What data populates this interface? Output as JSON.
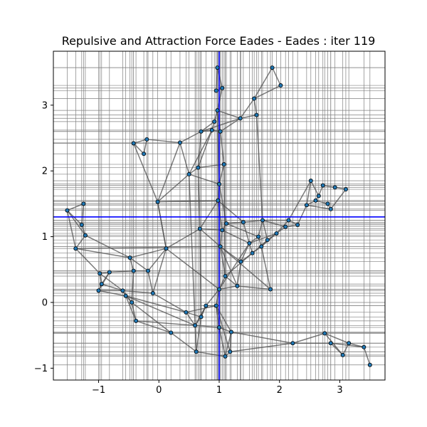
{
  "chart_data": {
    "type": "scatter",
    "title": "Repulsive and Attraction Force Eades - Eades : iter 119",
    "xlim": [
      -1.75,
      3.75
    ],
    "ylim": [
      -1.18,
      3.82
    ],
    "xticks": [
      -1,
      0,
      1,
      2,
      3
    ],
    "yticks": [
      -1,
      0,
      1,
      2,
      3
    ],
    "xtick_labels": [
      "−1",
      "0",
      "1",
      "2",
      "3"
    ],
    "ytick_labels": [
      "−1",
      "0",
      "1",
      "2",
      "3"
    ],
    "grid": "per-node lines",
    "colors": {
      "grid": "#808080",
      "edge": "#505050",
      "node": "#1f77b4",
      "node_edge": "#000000",
      "crosshair": "#0000ff"
    },
    "crosshair": {
      "x": 1.0,
      "y": 1.3
    },
    "nodes": [
      [
        -1.52,
        1.4
      ],
      [
        -1.25,
        1.5
      ],
      [
        -1.28,
        1.18
      ],
      [
        -1.22,
        1.02
      ],
      [
        -1.38,
        0.82
      ],
      [
        -0.98,
        0.44
      ],
      [
        -0.82,
        0.46
      ],
      [
        -0.95,
        0.28
      ],
      [
        -1.0,
        0.18
      ],
      [
        -0.6,
        0.18
      ],
      [
        -0.55,
        0.1
      ],
      [
        -0.48,
        0.68
      ],
      [
        -0.42,
        0.48
      ],
      [
        -0.18,
        0.48
      ],
      [
        -0.45,
        0.0
      ],
      [
        -0.38,
        -0.28
      ],
      [
        -0.1,
        0.14
      ],
      [
        0.12,
        0.82
      ],
      [
        -0.02,
        1.53
      ],
      [
        0.2,
        -0.46
      ],
      [
        -0.42,
        2.42
      ],
      [
        -0.25,
        2.26
      ],
      [
        -0.2,
        2.48
      ],
      [
        0.35,
        2.43
      ],
      [
        0.5,
        1.95
      ],
      [
        0.65,
        2.05
      ],
      [
        0.7,
        2.6
      ],
      [
        0.68,
        1.12
      ],
      [
        0.7,
        -0.22
      ],
      [
        0.62,
        -0.75
      ],
      [
        0.45,
        -0.15
      ],
      [
        0.6,
        -0.35
      ],
      [
        0.78,
        -0.05
      ],
      [
        0.88,
        2.62
      ],
      [
        0.92,
        2.75
      ],
      [
        0.95,
        3.22
      ],
      [
        0.97,
        3.57
      ],
      [
        1.05,
        3.26
      ],
      [
        0.97,
        2.92
      ],
      [
        1.02,
        2.6
      ],
      [
        1.08,
        2.1
      ],
      [
        1.0,
        1.8
      ],
      [
        0.98,
        1.55
      ],
      [
        1.05,
        1.1
      ],
      [
        1.02,
        0.85
      ],
      [
        1.12,
        1.2
      ],
      [
        1.1,
        0.4
      ],
      [
        1.0,
        0.2
      ],
      [
        0.95,
        -0.05
      ],
      [
        1.0,
        -0.38
      ],
      [
        1.1,
        -0.82
      ],
      [
        1.18,
        -0.75
      ],
      [
        1.2,
        -0.45
      ],
      [
        1.3,
        0.25
      ],
      [
        1.36,
        0.62
      ],
      [
        1.4,
        1.22
      ],
      [
        1.35,
        2.8
      ],
      [
        1.58,
        3.1
      ],
      [
        1.62,
        2.85
      ],
      [
        1.5,
        0.9
      ],
      [
        1.55,
        0.75
      ],
      [
        1.65,
        1.0
      ],
      [
        1.7,
        0.85
      ],
      [
        1.72,
        1.25
      ],
      [
        1.8,
        0.95
      ],
      [
        1.85,
        0.2
      ],
      [
        1.88,
        3.57
      ],
      [
        2.02,
        3.3
      ],
      [
        1.95,
        1.05
      ],
      [
        2.1,
        1.15
      ],
      [
        2.15,
        1.25
      ],
      [
        2.3,
        1.18
      ],
      [
        2.52,
        1.85
      ],
      [
        2.45,
        1.48
      ],
      [
        2.6,
        1.55
      ],
      [
        2.65,
        1.62
      ],
      [
        2.72,
        1.78
      ],
      [
        2.8,
        1.5
      ],
      [
        2.92,
        1.75
      ],
      [
        3.1,
        1.72
      ],
      [
        2.85,
        1.42
      ],
      [
        2.22,
        -0.62
      ],
      [
        2.75,
        -0.47
      ],
      [
        2.85,
        -0.62
      ],
      [
        3.05,
        -0.8
      ],
      [
        3.15,
        -0.62
      ],
      [
        3.4,
        -0.68
      ],
      [
        3.5,
        -0.95
      ]
    ],
    "edges": [
      [
        0,
        1
      ],
      [
        0,
        2
      ],
      [
        0,
        3
      ],
      [
        0,
        4
      ],
      [
        1,
        2
      ],
      [
        2,
        3
      ],
      [
        3,
        4
      ],
      [
        3,
        11
      ],
      [
        4,
        5
      ],
      [
        4,
        11
      ],
      [
        4,
        44
      ],
      [
        5,
        6
      ],
      [
        5,
        7
      ],
      [
        5,
        9
      ],
      [
        6,
        7
      ],
      [
        6,
        8
      ],
      [
        6,
        12
      ],
      [
        7,
        8
      ],
      [
        7,
        9
      ],
      [
        8,
        9
      ],
      [
        8,
        10
      ],
      [
        9,
        10
      ],
      [
        9,
        14
      ],
      [
        9,
        16
      ],
      [
        10,
        14
      ],
      [
        10,
        15
      ],
      [
        10,
        30
      ],
      [
        10,
        31
      ],
      [
        11,
        12
      ],
      [
        11,
        13
      ],
      [
        11,
        17
      ],
      [
        12,
        13
      ],
      [
        12,
        14
      ],
      [
        13,
        16
      ],
      [
        13,
        17
      ],
      [
        14,
        15
      ],
      [
        14,
        19
      ],
      [
        15,
        31
      ],
      [
        16,
        17
      ],
      [
        16,
        30
      ],
      [
        17,
        18
      ],
      [
        17,
        27
      ],
      [
        17,
        47
      ],
      [
        18,
        20
      ],
      [
        18,
        23
      ],
      [
        18,
        24
      ],
      [
        18,
        42
      ],
      [
        18,
        17
      ],
      [
        20,
        21
      ],
      [
        20,
        22
      ],
      [
        21,
        22
      ],
      [
        22,
        23
      ],
      [
        23,
        24
      ],
      [
        23,
        26
      ],
      [
        24,
        25
      ],
      [
        24,
        31
      ],
      [
        25,
        26
      ],
      [
        25,
        27
      ],
      [
        25,
        33
      ],
      [
        26,
        33
      ],
      [
        26,
        34
      ],
      [
        27,
        28
      ],
      [
        27,
        43
      ],
      [
        27,
        44
      ],
      [
        28,
        29
      ],
      [
        28,
        30
      ],
      [
        28,
        31
      ],
      [
        28,
        32
      ],
      [
        29,
        31
      ],
      [
        29,
        50
      ],
      [
        30,
        31
      ],
      [
        30,
        48
      ],
      [
        31,
        32
      ],
      [
        31,
        49
      ],
      [
        32,
        47
      ],
      [
        32,
        48
      ],
      [
        33,
        34
      ],
      [
        33,
        39
      ],
      [
        34,
        38
      ],
      [
        35,
        36
      ],
      [
        35,
        37
      ],
      [
        36,
        37
      ],
      [
        37,
        38
      ],
      [
        38,
        39
      ],
      [
        38,
        56
      ],
      [
        39,
        40
      ],
      [
        39,
        56
      ],
      [
        40,
        41
      ],
      [
        40,
        46
      ],
      [
        41,
        42
      ],
      [
        41,
        45
      ],
      [
        42,
        43
      ],
      [
        42,
        55
      ],
      [
        43,
        44
      ],
      [
        43,
        45
      ],
      [
        43,
        59
      ],
      [
        44,
        46
      ],
      [
        44,
        54
      ],
      [
        45,
        55
      ],
      [
        46,
        47
      ],
      [
        46,
        53
      ],
      [
        47,
        48
      ],
      [
        47,
        53
      ],
      [
        48,
        49
      ],
      [
        48,
        52
      ],
      [
        49,
        50
      ],
      [
        49,
        52
      ],
      [
        50,
        51
      ],
      [
        51,
        52
      ],
      [
        51,
        81
      ],
      [
        52,
        81
      ],
      [
        53,
        54
      ],
      [
        53,
        65
      ],
      [
        54,
        59
      ],
      [
        54,
        60
      ],
      [
        55,
        59
      ],
      [
        55,
        63
      ],
      [
        56,
        57
      ],
      [
        56,
        58
      ],
      [
        57,
        58
      ],
      [
        57,
        66
      ],
      [
        58,
        63
      ],
      [
        59,
        60
      ],
      [
        59,
        61
      ],
      [
        60,
        62
      ],
      [
        61,
        62
      ],
      [
        61,
        63
      ],
      [
        62,
        64
      ],
      [
        62,
        65
      ],
      [
        63,
        64
      ],
      [
        63,
        70
      ],
      [
        64,
        68
      ],
      [
        65,
        44
      ],
      [
        66,
        67
      ],
      [
        67,
        57
      ],
      [
        68,
        69
      ],
      [
        68,
        70
      ],
      [
        69,
        71
      ],
      [
        70,
        72
      ],
      [
        71,
        73
      ],
      [
        72,
        73
      ],
      [
        72,
        75
      ],
      [
        73,
        74
      ],
      [
        74,
        75
      ],
      [
        74,
        77
      ],
      [
        75,
        76
      ],
      [
        76,
        78
      ],
      [
        77,
        80
      ],
      [
        78,
        79
      ],
      [
        79,
        80
      ],
      [
        80,
        73
      ],
      [
        81,
        82
      ],
      [
        81,
        83
      ],
      [
        82,
        84
      ],
      [
        82,
        85
      ],
      [
        83,
        84
      ],
      [
        84,
        85
      ],
      [
        85,
        86
      ],
      [
        86,
        87
      ],
      [
        83,
        86
      ],
      [
        19,
        29
      ],
      [
        19,
        15
      ],
      [
        32,
        28
      ],
      [
        48,
        51
      ],
      [
        52,
        50
      ],
      [
        60,
        64
      ],
      [
        62,
        68
      ],
      [
        70,
        71
      ],
      [
        46,
        60
      ],
      [
        41,
        24
      ],
      [
        42,
        27
      ],
      [
        44,
        53
      ],
      [
        45,
        61
      ],
      [
        59,
        68
      ],
      [
        63,
        69
      ],
      [
        25,
        40
      ],
      [
        38,
        41
      ],
      [
        33,
        24
      ],
      [
        26,
        56
      ],
      [
        47,
        59
      ]
    ]
  }
}
